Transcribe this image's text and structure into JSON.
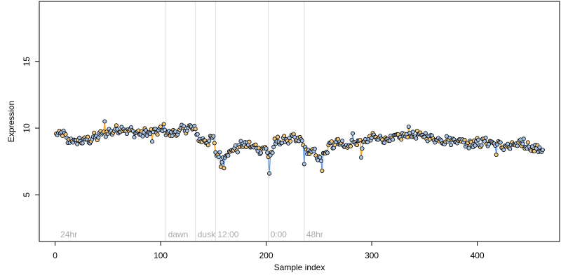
{
  "chart_data": {
    "type": "scatter",
    "title": "",
    "xlabel": "Sample index",
    "ylabel": "Expression",
    "xlim": [
      -15,
      478
    ],
    "ylim": [
      1.5,
      19.5
    ],
    "xticks": [
      0,
      100,
      200,
      300,
      400
    ],
    "yticks": [
      5,
      10,
      15
    ],
    "grid": false,
    "point_fill_colors": [
      "#a9c4e6",
      "#f2c77a"
    ],
    "line_colors": [
      "#6a9be0",
      "#f0a030"
    ],
    "vertical_lines": [
      {
        "x": 105,
        "label": "dawn"
      },
      {
        "x": 133,
        "label": "dusk"
      },
      {
        "x": 152,
        "label": "12:00"
      },
      {
        "x": 202,
        "label": "0:00"
      },
      {
        "x": 236,
        "label": "48hr"
      }
    ],
    "annotations": [
      {
        "x": 3,
        "label": "24hr"
      }
    ],
    "anchors": [
      [
        1,
        9.4
      ],
      [
        6,
        9.7
      ],
      [
        12,
        9.1
      ],
      [
        20,
        9.0
      ],
      [
        30,
        9.1
      ],
      [
        38,
        9.3
      ],
      [
        46,
        9.6
      ],
      [
        55,
        9.8
      ],
      [
        62,
        10.0
      ],
      [
        70,
        9.8
      ],
      [
        80,
        9.6
      ],
      [
        90,
        9.7
      ],
      [
        100,
        9.8
      ],
      [
        108,
        9.6
      ],
      [
        116,
        9.7
      ],
      [
        124,
        10.0
      ],
      [
        132,
        10.0
      ],
      [
        136,
        9.2
      ],
      [
        143,
        9.0
      ],
      [
        150,
        9.2
      ],
      [
        153,
        8.0
      ],
      [
        158,
        7.8
      ],
      [
        165,
        8.2
      ],
      [
        172,
        8.5
      ],
      [
        180,
        8.8
      ],
      [
        188,
        8.6
      ],
      [
        195,
        8.4
      ],
      [
        200,
        8.5
      ],
      [
        203,
        7.7
      ],
      [
        210,
        9.0
      ],
      [
        218,
        9.1
      ],
      [
        226,
        9.2
      ],
      [
        234,
        9.0
      ],
      [
        238,
        8.2
      ],
      [
        245,
        8.2
      ],
      [
        252,
        7.6
      ],
      [
        260,
        8.6
      ],
      [
        268,
        9.1
      ],
      [
        276,
        8.6
      ],
      [
        285,
        9.0
      ],
      [
        292,
        8.8
      ],
      [
        300,
        9.3
      ],
      [
        310,
        9.2
      ],
      [
        320,
        9.2
      ],
      [
        330,
        9.4
      ],
      [
        340,
        9.5
      ],
      [
        350,
        9.4
      ],
      [
        360,
        9.2
      ],
      [
        370,
        9.1
      ],
      [
        380,
        9.1
      ],
      [
        390,
        9.0
      ],
      [
        400,
        8.9
      ],
      [
        410,
        9.0
      ],
      [
        420,
        8.7
      ],
      [
        430,
        8.6
      ],
      [
        440,
        8.8
      ],
      [
        450,
        8.6
      ],
      [
        460,
        8.4
      ],
      [
        462,
        8.3
      ]
    ],
    "outliers": [
      [
        47,
        10.5
      ],
      [
        58,
        10.2
      ],
      [
        92,
        9.0
      ],
      [
        103,
        10.3
      ],
      [
        157,
        7.1
      ],
      [
        160,
        7.0
      ],
      [
        203,
        6.6
      ],
      [
        208,
        9.2
      ],
      [
        236,
        7.3
      ],
      [
        253,
        6.8
      ],
      [
        262,
        9.0
      ],
      [
        282,
        9.6
      ],
      [
        290,
        7.8
      ],
      [
        298,
        9.4
      ],
      [
        335,
        10.1
      ],
      [
        392,
        8.5
      ],
      [
        418,
        8.0
      ],
      [
        444,
        9.2
      ]
    ],
    "n_points": 462
  }
}
